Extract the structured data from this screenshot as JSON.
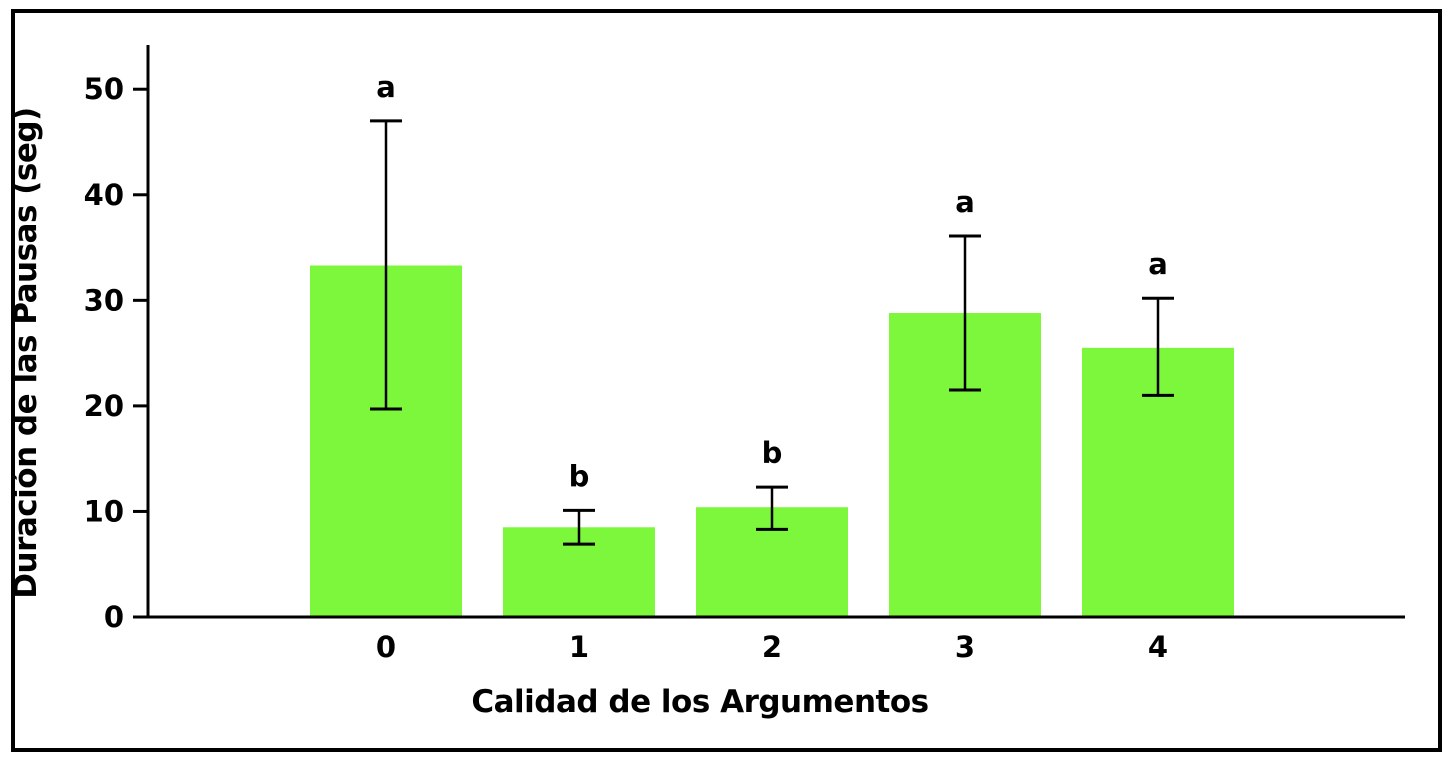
{
  "figure": {
    "background": "#ffffff",
    "border_color": "#000000"
  },
  "chart_data": {
    "type": "bar",
    "title": "",
    "xlabel": "Calidad de los Argumentos",
    "ylabel": "Duración de las Pausas (seg)",
    "categories": [
      "0",
      "1",
      "2",
      "3",
      "4"
    ],
    "values": [
      33.3,
      8.5,
      10.4,
      28.8,
      25.5
    ],
    "error_upper": [
      47.0,
      10.1,
      12.3,
      36.1,
      30.2
    ],
    "error_lower": [
      19.7,
      6.9,
      8.3,
      21.5,
      21.0
    ],
    "significance_letters": [
      "a",
      "b",
      "b",
      "a",
      "a"
    ],
    "yticks": [
      0,
      10,
      20,
      30,
      40,
      50
    ],
    "ylim": [
      0,
      54
    ],
    "bar_color": "#7cf73c",
    "axis_color": "#000000",
    "error_bar_color": "#000000",
    "grid": false,
    "legend": false
  }
}
